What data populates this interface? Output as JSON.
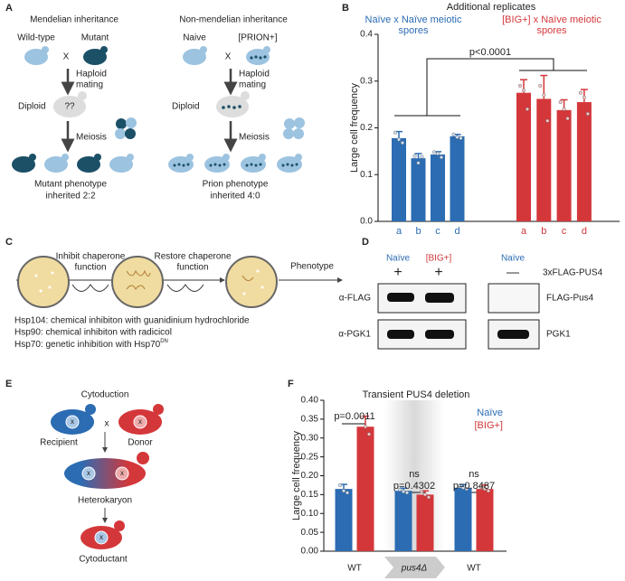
{
  "panel_labels": [
    "A",
    "B",
    "C",
    "D",
    "E",
    "F"
  ],
  "panel_a": {
    "left": {
      "title": "Mendelian inheritance",
      "parents": [
        "Wild-type",
        "Mutant"
      ],
      "cross": "X",
      "mating": [
        "Haploid",
        "mating"
      ],
      "diploid": "Diploid",
      "diploid_cell": "??",
      "meiosis": "Meiosis",
      "outcome": [
        "Mutant phenotype",
        "inherited 2:2"
      ]
    },
    "right": {
      "title": "Non-mendelian inheritance",
      "parents": [
        "Naive",
        "[PRION+]"
      ],
      "cross": "X",
      "mating": [
        "Haploid",
        "mating"
      ],
      "diploid": "Diploid",
      "meiosis": "Meiosis",
      "outcome": [
        "Prion phenotype",
        "inherited 4:0"
      ]
    }
  },
  "panel_c": {
    "steps": [
      [
        "Inhibit chaperone",
        "function"
      ],
      [
        "Restore chaperone",
        "function"
      ]
    ],
    "phenotype": "Phenotype",
    "notes": [
      "Hsp104: chemical inhibiton with guanidinium hydrochloride",
      "Hsp90: chemical inhibiton with radicicol",
      "Hsp70: genetic inhibition with Hsp70"
    ],
    "note_sup": "DN"
  },
  "panel_d": {
    "columns": [
      "Naïve",
      "[BIG+]",
      "Naïve"
    ],
    "signs": [
      "+",
      "+",
      "—"
    ],
    "construct": "3xFLAG-PUS4",
    "rows": [
      {
        "antibody": "α-FLAG",
        "protein": "FLAG-Pus4"
      },
      {
        "antibody": "α-PGK1",
        "protein": "PGK1"
      }
    ]
  },
  "panel_e": {
    "title": "Cytoduction",
    "recipient": "Recipient",
    "donor": "Donor",
    "cross": "x",
    "nucleus": "x",
    "heterokaryon": "Heterokaryon",
    "cytoductant": "Cytoductant"
  },
  "chart_data": [
    {
      "type": "bar",
      "title": "Additional replicates",
      "ylabel": "Large cell frequency",
      "categories": [
        "a",
        "b",
        "c",
        "d"
      ],
      "series": [
        {
          "name": "Naïve x Naïve meiotic spores",
          "color": "#2b6cb3",
          "values": [
            0.178,
            0.135,
            0.143,
            0.182
          ],
          "errors": [
            0.014,
            0.01,
            0.006,
            0.004
          ],
          "points": [
            [
              0.19,
              0.175,
              0.168
            ],
            [
              0.14,
              0.125,
              0.138
            ],
            [
              0.148,
              0.145,
              0.137
            ],
            [
              0.186,
              0.18,
              0.178
            ]
          ]
        },
        {
          "name": "[BIG+] x Naïve meiotic spores",
          "color": "#d4373a",
          "values": [
            0.275,
            0.262,
            0.238,
            0.255
          ],
          "errors": [
            0.028,
            0.05,
            0.022,
            0.027
          ],
          "points": [
            [
              0.29,
              0.28,
              0.24
            ],
            [
              0.29,
              0.27,
              0.215
            ],
            [
              0.255,
              0.24,
              0.22
            ],
            [
              0.275,
              0.265,
              0.23
            ]
          ]
        }
      ],
      "ylim": [
        0,
        0.4
      ],
      "yticks": [
        {
          "value": 0,
          "label": "0.0"
        },
        0.1,
        0.2,
        0.3,
        0.4
      ],
      "annotations": [
        "p<0.0001"
      ]
    },
    {
      "type": "bar",
      "title": "Transient PUS4 deletion",
      "ylabel": "Large cell frequency",
      "categories": [
        "WT",
        "pus4Δ",
        "WT"
      ],
      "series": [
        {
          "name": "Naïve",
          "color": "#2b6cb3",
          "values": [
            0.165,
            0.16,
            0.168
          ],
          "errors": [
            0.012,
            0.007,
            0.008
          ],
          "points": [
            [
              0.175,
              0.16,
              0.155
            ],
            [
              0.163,
              0.158,
              0.155
            ],
            [
              0.172,
              0.168,
              0.165
            ]
          ]
        },
        {
          "name": "[BIG+]",
          "color": "#d4373a",
          "values": [
            0.33,
            0.15,
            0.165
          ],
          "errors": [
            0.028,
            0.01,
            0.01
          ],
          "points": [
            [
              0.355,
              0.33,
              0.31
            ],
            [
              0.158,
              0.15,
              0.143
            ],
            [
              0.17,
              0.165,
              0.16
            ]
          ]
        }
      ],
      "ylim": [
        0,
        0.4
      ],
      "yticks": [
        {
          "value": 0,
          "label": "0.00"
        },
        {
          "value": 0.05,
          "label": "0.05"
        },
        {
          "value": 0.1,
          "label": "0.10"
        },
        {
          "value": 0.15,
          "label": "0.15"
        },
        {
          "value": 0.2,
          "label": "0.20"
        },
        {
          "value": 0.25,
          "label": "0.25"
        },
        {
          "value": 0.3,
          "label": "0.30"
        },
        {
          "value": 0.35,
          "label": "0.35"
        },
        {
          "value": 0.4,
          "label": "0.40"
        }
      ],
      "legend": "top-right",
      "annotations": [
        "p=0.0011",
        "ns",
        "p=0.4302",
        "ns",
        "p=0.8487"
      ]
    }
  ]
}
